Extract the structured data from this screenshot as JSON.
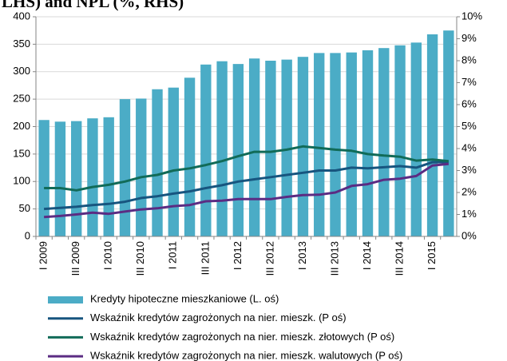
{
  "chart_data": {
    "type": "bar",
    "title": "LHS) and NPL (%, RHS)",
    "categories": [
      "I 2009",
      null,
      "III 2009",
      null,
      "I 2010",
      null,
      "III 2010",
      null,
      "I 2011",
      null,
      "III 2011",
      null,
      "I 2012",
      null,
      "III 2012",
      null,
      "I 2013",
      null,
      "III 2013",
      null,
      "I 2014",
      null,
      "III 2014",
      null,
      "I 2015",
      null
    ],
    "ylim": [
      0,
      400
    ],
    "yticks": [
      0,
      50,
      100,
      150,
      200,
      250,
      300,
      350,
      400
    ],
    "y2lim": [
      0,
      10
    ],
    "y2ticks": [
      {
        "value": 0,
        "label": "0%"
      },
      {
        "value": 1,
        "label": "1%"
      },
      {
        "value": 2,
        "label": "2%"
      },
      {
        "value": 3,
        "label": "3%"
      },
      {
        "value": 4,
        "label": "4%"
      },
      {
        "value": 5,
        "label": "5%"
      },
      {
        "value": 6,
        "label": "6%"
      },
      {
        "value": 7,
        "label": "7%"
      },
      {
        "value": 8,
        "label": "8%"
      },
      {
        "value": 9,
        "label": "9%"
      },
      {
        "value": 10,
        "label": "10%"
      }
    ],
    "grid": true,
    "legend": "bottom",
    "series": [
      {
        "name": "Kredyty hipoteczne mieszkaniowe (L. oś)",
        "type": "bar",
        "color": "#4bacc6",
        "values": [
          212,
          209,
          210,
          215,
          217,
          250,
          251,
          268,
          271,
          289,
          313,
          319,
          314,
          324,
          320,
          322,
          327,
          334,
          334,
          335,
          339,
          343,
          348,
          353,
          368,
          375
        ]
      },
      {
        "name": "Wskaźnik kredytów zagrożonych na nier. mieszk. (P oś)",
        "type": "line",
        "axis": "y2",
        "color": "#17557f",
        "values": [
          1.25,
          1.3,
          1.35,
          1.43,
          1.48,
          1.58,
          1.75,
          1.83,
          1.95,
          2.05,
          2.2,
          2.33,
          2.5,
          2.6,
          2.7,
          2.8,
          2.9,
          3.0,
          3.0,
          3.13,
          3.1,
          3.15,
          3.2,
          3.13,
          3.38,
          3.38
        ]
      },
      {
        "name": "Wskaźnik kredytów zagrożonych na nier. mieszk. złotowych (P oś)",
        "type": "line",
        "axis": "y2",
        "color": "#116b58",
        "values": [
          2.2,
          2.2,
          2.1,
          2.25,
          2.35,
          2.5,
          2.7,
          2.8,
          3.0,
          3.1,
          3.25,
          3.43,
          3.65,
          3.85,
          3.85,
          3.95,
          4.1,
          4.03,
          3.95,
          3.9,
          3.75,
          3.68,
          3.63,
          3.45,
          3.5,
          3.43
        ]
      },
      {
        "name": "Wskaźnik kredytów zagrożonych na nier. mieszk. walutowych (P oś)",
        "type": "line",
        "axis": "y2",
        "color": "#5b2c83",
        "values": [
          0.88,
          0.93,
          1.0,
          1.08,
          1.03,
          1.13,
          1.23,
          1.28,
          1.38,
          1.43,
          1.6,
          1.63,
          1.7,
          1.7,
          1.7,
          1.8,
          1.88,
          1.9,
          2.0,
          2.3,
          2.38,
          2.58,
          2.63,
          2.75,
          3.23,
          3.3
        ]
      }
    ]
  }
}
